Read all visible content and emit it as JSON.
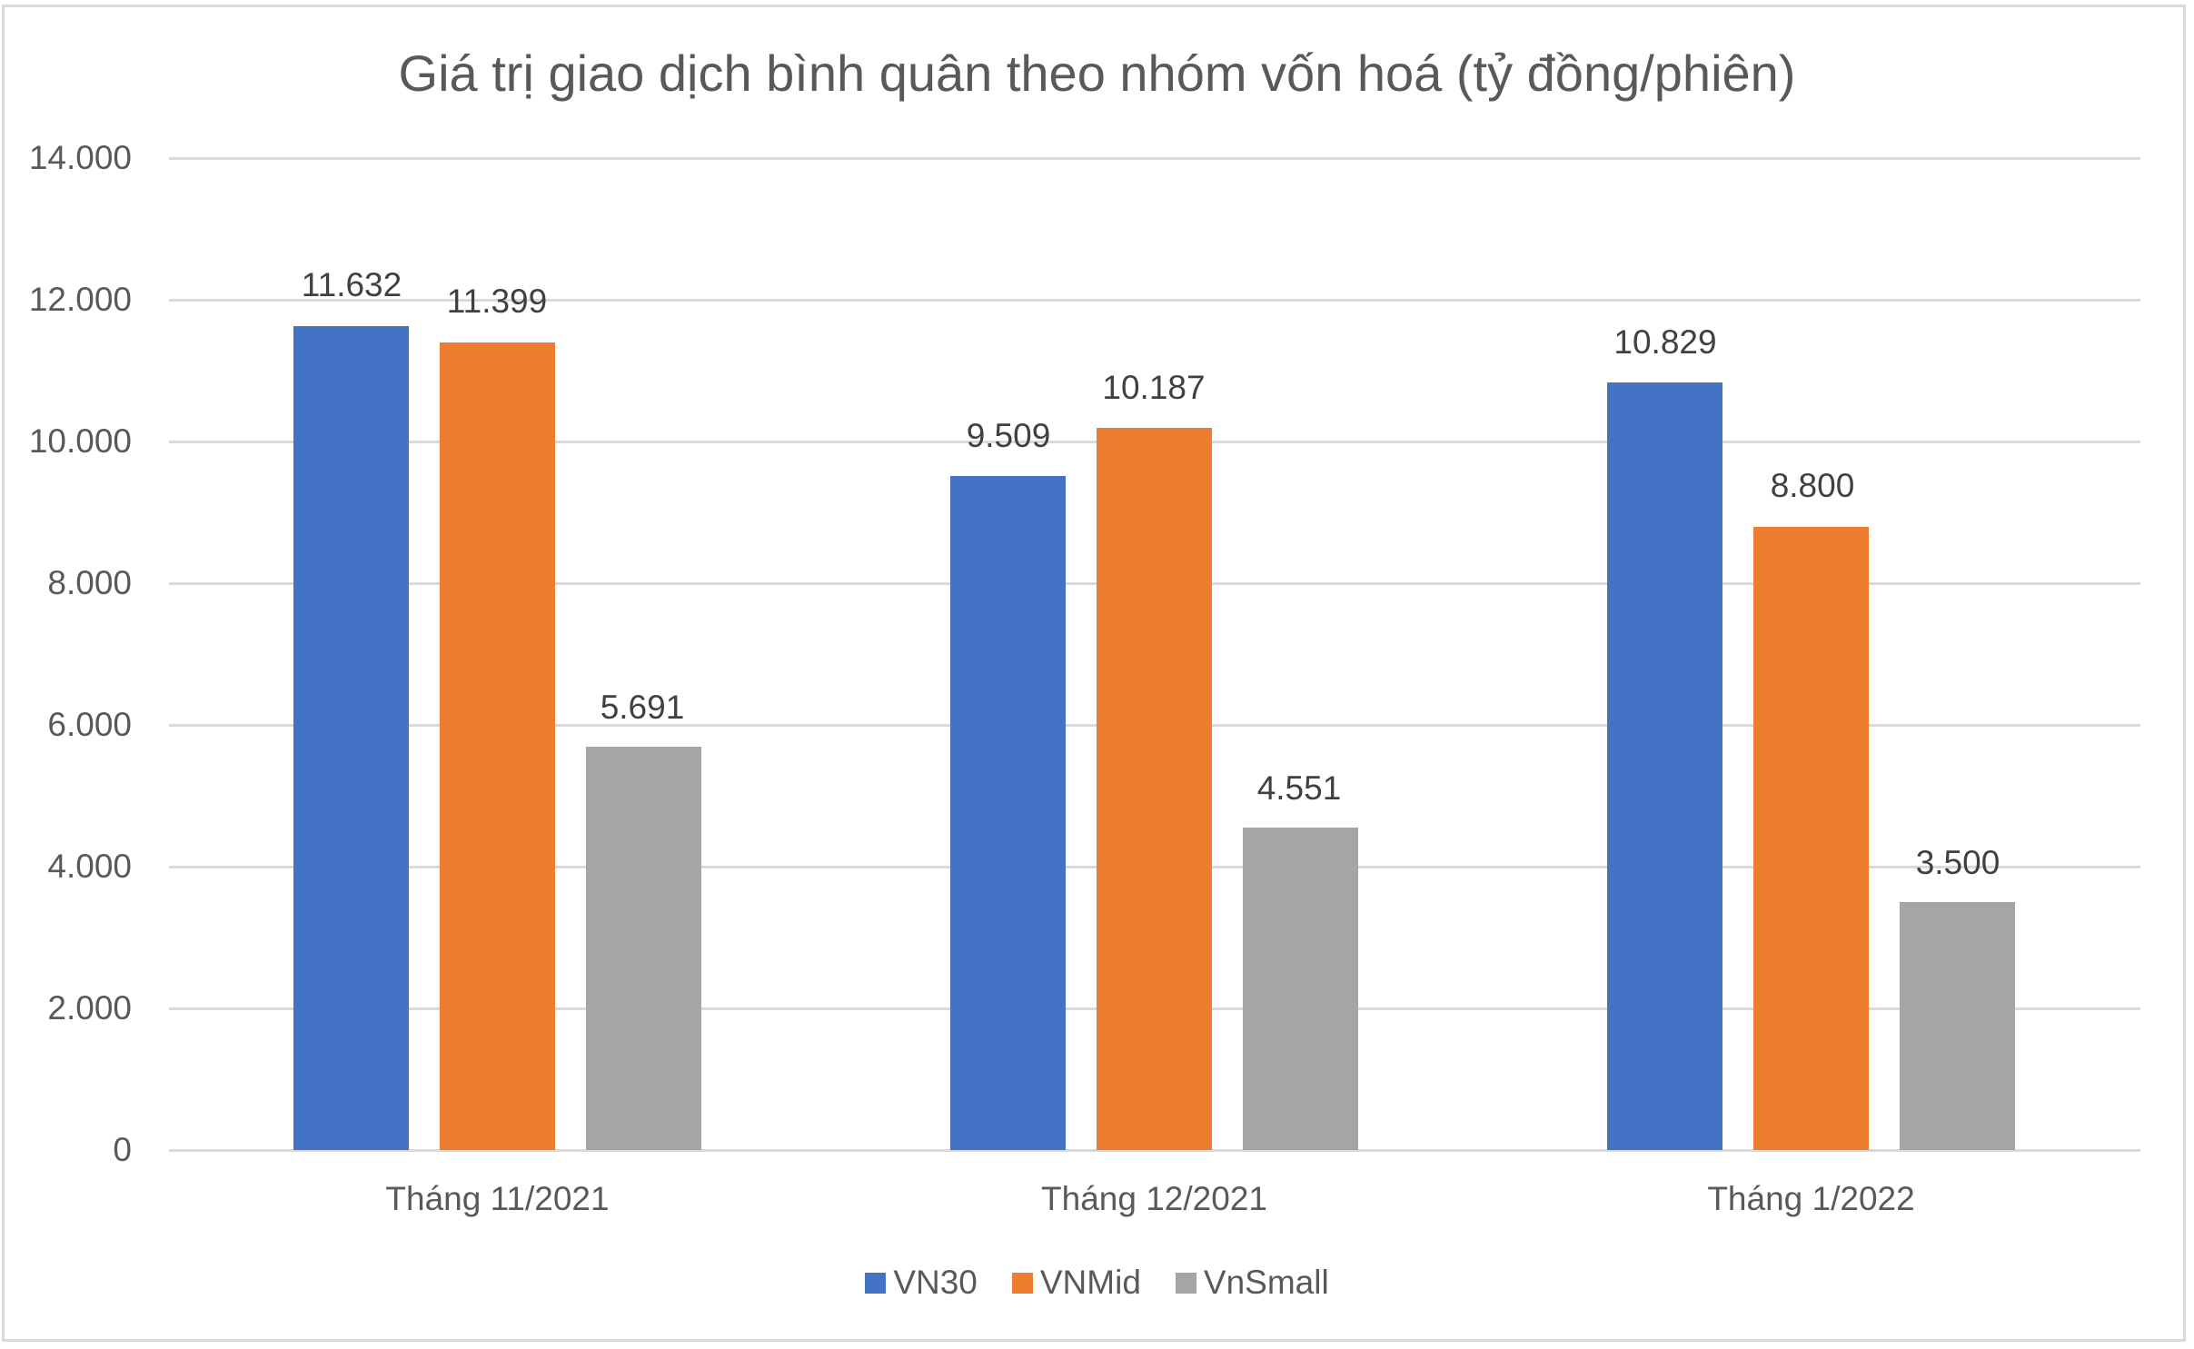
{
  "chart": {
    "title": "Giá trị giao dịch bình quân theo nhóm vốn hoá (tỷ đồng/phiên)"
  },
  "y_axis": {
    "ticks": [
      "14.000",
      "12.000",
      "10.000",
      "8.000",
      "6.000",
      "4.000",
      "2.000",
      "0"
    ]
  },
  "x_axis": {
    "categories": [
      "Tháng 11/2021",
      "Tháng 12/2021",
      "Tháng 1/2022"
    ]
  },
  "legend": {
    "items": [
      {
        "label": "VN30",
        "color": "#4472C4"
      },
      {
        "label": "VNMid",
        "color": "#ED7D31"
      },
      {
        "label": "VnSmall",
        "color": "#A5A5A5"
      }
    ]
  },
  "labels": {
    "g0": [
      "11.632",
      "11.399",
      "5.691"
    ],
    "g1": [
      "9.509",
      "10.187",
      "4.551"
    ],
    "g2": [
      "10.829",
      "8.800",
      "3.500"
    ]
  },
  "chart_data": {
    "type": "bar",
    "title": "Giá trị giao dịch bình quân theo nhóm vốn hoá (tỷ đồng/phiên)",
    "xlabel": "",
    "ylabel": "",
    "categories": [
      "Tháng 11/2021",
      "Tháng 12/2021",
      "Tháng 1/2022"
    ],
    "series": [
      {
        "name": "VN30",
        "color": "#4472C4",
        "values": [
          11632,
          9509,
          10829
        ]
      },
      {
        "name": "VNMid",
        "color": "#ED7D31",
        "values": [
          11399,
          10187,
          8800
        ]
      },
      {
        "name": "VnSmall",
        "color": "#A5A5A5",
        "values": [
          5691,
          4551,
          3500
        ]
      }
    ],
    "ylim": [
      0,
      14000
    ],
    "yticks": [
      0,
      2000,
      4000,
      6000,
      8000,
      10000,
      12000,
      14000
    ],
    "grid": true,
    "legend_position": "bottom",
    "data_labels": true
  }
}
